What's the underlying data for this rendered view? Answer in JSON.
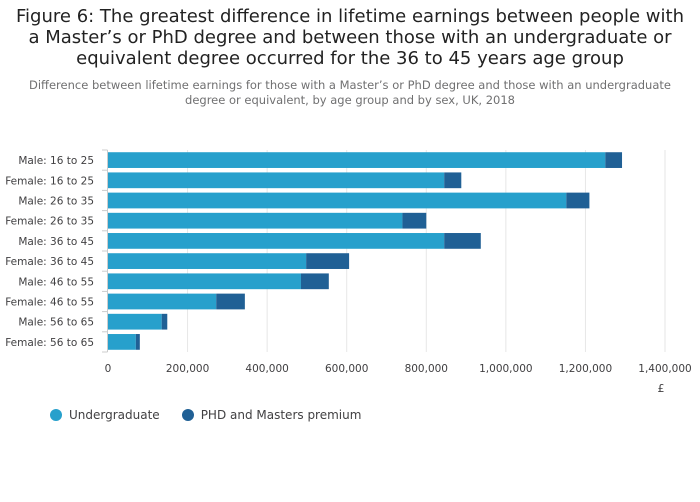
{
  "title": "Figure 6: The greatest difference in lifetime earnings between people with a Master’s or PhD degree and between those with an undergraduate or equivalent degree occurred for the 36 to 45 years age group",
  "subtitle": "Difference between lifetime earnings for those with a Master’s or PhD degree and those with an undergraduate degree or equivalent, by age group and by sex, UK, 2018",
  "legend": [
    {
      "label": "Undergraduate",
      "color": "#27a0cc"
    },
    {
      "label": "PHD and Masters premium",
      "color": "#206095"
    }
  ],
  "chart_data": {
    "type": "bar",
    "orientation": "horizontal",
    "stacked": true,
    "title": "Figure 6: The greatest difference in lifetime earnings between people with a Master’s or PhD degree and between those with an undergraduate or equivalent degree occurred for the 36 to 45 years age group",
    "categories": [
      "Male: 16 to 25",
      "Female: 16 to 25",
      "Male: 26 to 35",
      "Female: 26 to 35",
      "Male: 36 to 45",
      "Female: 36 to 45",
      "Male: 46 to 55",
      "Female: 46 to 55",
      "Male: 56 to 65",
      "Female: 56 to 65"
    ],
    "series": [
      {
        "name": "Undergraduate",
        "color": "#27a0cc",
        "values": [
          1250000,
          845000,
          1152000,
          740000,
          845000,
          498000,
          485000,
          272000,
          135000,
          70000
        ]
      },
      {
        "name": "PHD and Masters premium",
        "color": "#206095",
        "values": [
          42000,
          43000,
          58000,
          60000,
          92000,
          108000,
          70000,
          72000,
          14000,
          10000
        ]
      }
    ],
    "xlim": [
      0,
      1400000
    ],
    "xticks": [
      0,
      200000,
      400000,
      600000,
      800000,
      1000000,
      1200000,
      1400000
    ],
    "xtick_labels": [
      "0",
      "200,000",
      "400,000",
      "600,000",
      "800,000",
      "1,000,000",
      "1,200,000",
      "1,400,000"
    ],
    "xlabel": "£",
    "ylabel": "",
    "grid": true
  }
}
